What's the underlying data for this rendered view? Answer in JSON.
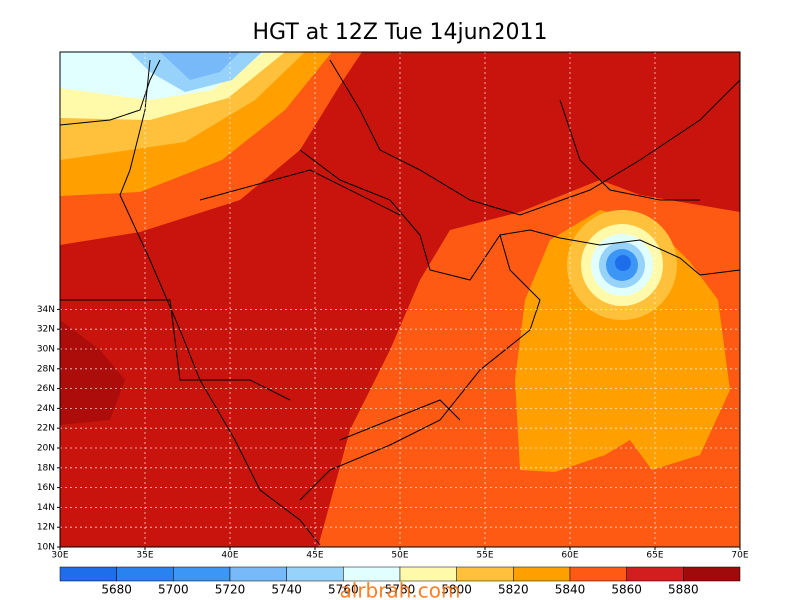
{
  "title": "HGT at 12Z Tue 14jun2011",
  "x_axis": {
    "labels": [
      "30E",
      "35E",
      "40E",
      "45E",
      "50E",
      "55E",
      "60E",
      "65E",
      "70E"
    ]
  },
  "y_axis": {
    "labels": [
      "10N",
      "12N",
      "14N",
      "16N",
      "18N",
      "20N",
      "22N",
      "24N",
      "26N",
      "28N",
      "30N",
      "32N",
      "34N"
    ]
  },
  "colorbar": {
    "labels": [
      5680,
      5700,
      5720,
      5740,
      5760,
      5780,
      5800,
      5820,
      5840,
      5860,
      5880
    ],
    "colors": [
      "#1e6eeb",
      "#2882f0",
      "#3c96f5",
      "#78b9fa",
      "#96d2fa",
      "#e1ffff",
      "#fffaaa",
      "#ffc03c",
      "#ffa000",
      "#ff5a14",
      "#d21e1e",
      "#a00a0a"
    ]
  },
  "watermark": "alrbrah.com"
}
